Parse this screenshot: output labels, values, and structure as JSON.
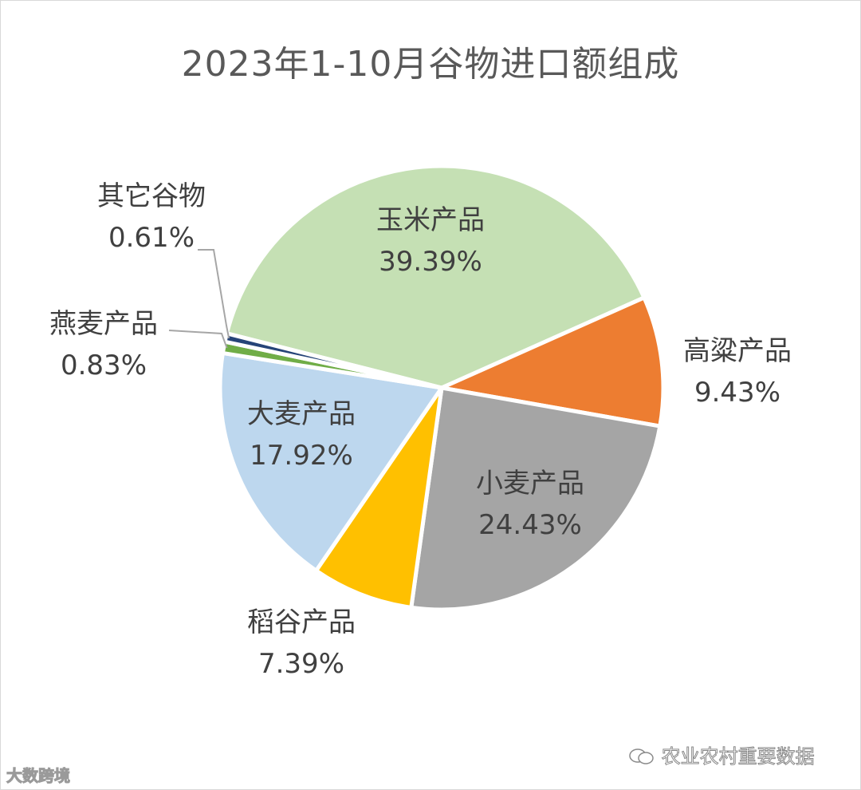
{
  "chart_data": {
    "type": "pie",
    "title": "2023年1-10月谷物进口额组成",
    "slices": [
      {
        "name": "玉米产品",
        "value": 39.39,
        "label": "39.39%",
        "color": "#C5E0B4"
      },
      {
        "name": "高粱产品",
        "value": 9.43,
        "label": "9.43%",
        "color": "#ED7D31"
      },
      {
        "name": "小麦产品",
        "value": 24.43,
        "label": "24.43%",
        "color": "#A5A5A5"
      },
      {
        "name": "稻谷产品",
        "value": 7.39,
        "label": "7.39%",
        "color": "#FFC000"
      },
      {
        "name": "大麦产品",
        "value": 17.92,
        "label": "17.92%",
        "color": "#BDD7EE"
      },
      {
        "name": "燕麦产品",
        "value": 0.83,
        "label": "0.83%",
        "color": "#70AD47"
      },
      {
        "name": "其它谷物",
        "value": 0.61,
        "label": "0.61%",
        "color": "#264478"
      }
    ]
  },
  "watermarks": {
    "left": "大数跨境",
    "right": "农业农村重要数据"
  }
}
